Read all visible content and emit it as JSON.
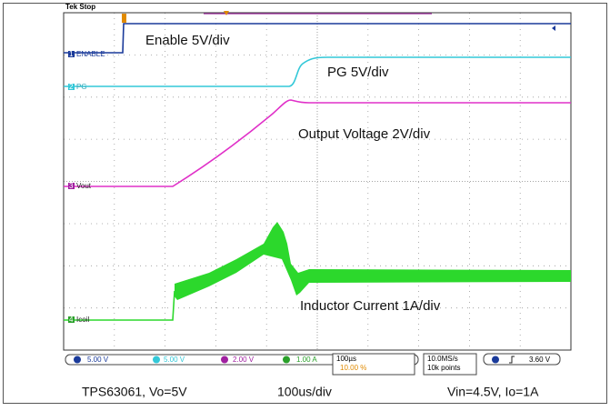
{
  "header": {
    "status": "Tek Stop"
  },
  "channels": [
    {
      "number": "1",
      "label": "ENABLE"
    },
    {
      "number": "2",
      "label": "PG"
    },
    {
      "number": "3",
      "label": "Vout"
    },
    {
      "number": "4",
      "label": "Icoil"
    }
  ],
  "annotations": [
    "Enable 5V/div",
    "PG  5V/div",
    "Output Voltage 2V/div",
    "Inductor Current 1A/div"
  ],
  "status_bar": {
    "scales": [
      "5.00 V",
      "5.00 V",
      "2.00 V",
      "1.00 A"
    ],
    "timebase": "100µs",
    "trigger_position": "10.00 %",
    "sample_rate": "10.0MS/s",
    "record_length": "10k points",
    "trigger_level": "3.60 V"
  },
  "caption": [
    "TPS63061, Vo=5V",
    "100us/div",
    "Vin=4.5V, Io=1A"
  ]
}
